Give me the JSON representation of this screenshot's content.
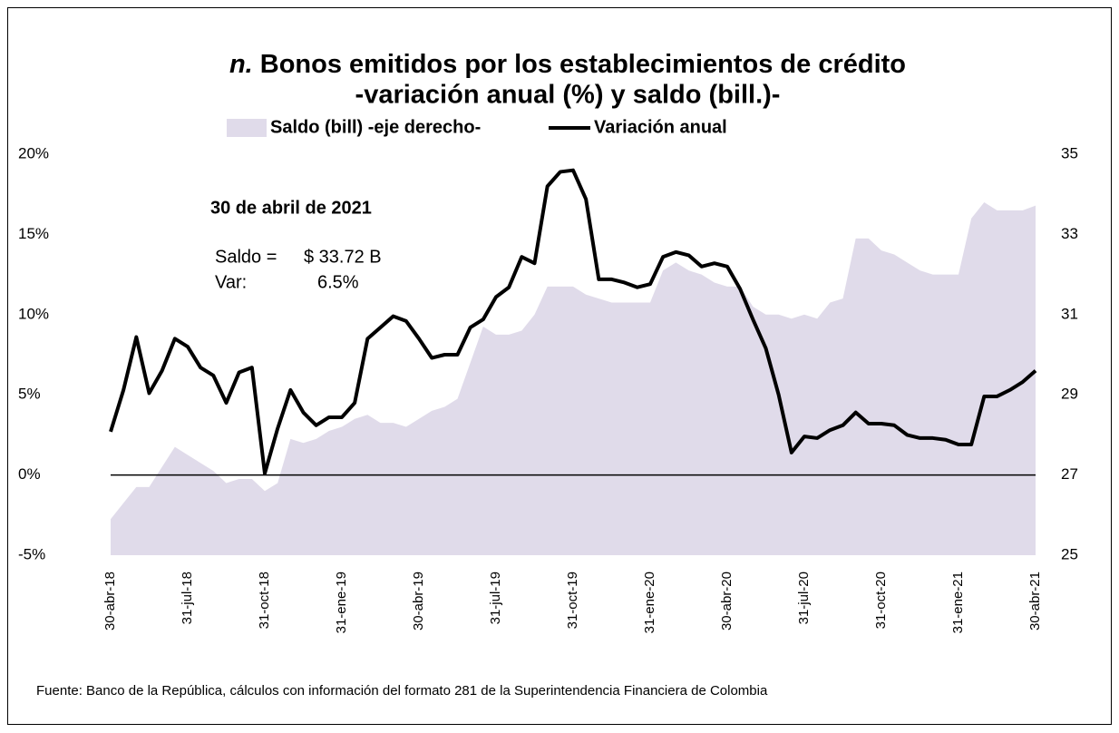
{
  "chart_data": {
    "type": "line",
    "title_marker": "n.",
    "title": [
      "Bonos emitidos por los establecimientos de crédito",
      "-variación anual (%) y saldo (bill.)-"
    ],
    "annotations": {
      "date": "30 de abril de 2021",
      "saldo_label": "Saldo =",
      "saldo_value": "$ 33.72 B",
      "var_label": "Var:",
      "var_value": "6.5%"
    },
    "source": "Fuente:  Banco de la República, cálculos con información del formato 281 de la Superintendencia Financiera de Colombia",
    "categories": [
      "30-abr-18",
      null,
      null,
      null,
      null,
      null,
      "31-jul-18",
      null,
      null,
      null,
      null,
      null,
      "31-oct-18",
      null,
      null,
      null,
      null,
      null,
      "31-ene-19",
      null,
      null,
      null,
      null,
      null,
      "30-abr-19",
      null,
      null,
      null,
      null,
      null,
      "31-jul-19",
      null,
      null,
      null,
      null,
      null,
      "31-oct-19",
      null,
      null,
      null,
      null,
      null,
      "31-ene-20",
      null,
      null,
      null,
      null,
      null,
      "30-abr-20",
      null,
      null,
      null,
      null,
      null,
      "31-jul-20",
      null,
      null,
      null,
      null,
      null,
      "31-oct-20",
      null,
      null,
      null,
      null,
      null,
      "31-ene-21",
      null,
      null,
      null,
      null,
      null,
      "30-abr-21"
    ],
    "series": [
      {
        "name": "Saldo (bill) -eje derecho-",
        "kind": "area",
        "axis": "y2",
        "color": "#e0dbea",
        "values": [
          25.9,
          26.3,
          26.7,
          26.7,
          27.2,
          27.7,
          27.5,
          27.3,
          27.1,
          26.8,
          26.9,
          26.9,
          26.6,
          26.8,
          27.9,
          27.8,
          27.9,
          28.1,
          28.2,
          28.4,
          28.5,
          28.3,
          28.3,
          28.2,
          28.4,
          28.6,
          28.7,
          28.9,
          29.8,
          30.7,
          30.5,
          30.5,
          30.6,
          31.0,
          31.7,
          31.7,
          31.7,
          31.5,
          31.4,
          31.3,
          31.3,
          31.3,
          31.3,
          32.1,
          32.3,
          32.1,
          32.0,
          31.8,
          31.7,
          31.7,
          31.2,
          31.0,
          31.0,
          30.9,
          31.0,
          30.9,
          31.3,
          31.4,
          32.9,
          32.9,
          32.6,
          32.5,
          32.3,
          32.1,
          32.0,
          32.0,
          32.0,
          33.4,
          33.8,
          33.6,
          33.6,
          33.6,
          33.72
        ]
      },
      {
        "name": "Variación anual",
        "kind": "line",
        "color": "#000000",
        "values": [
          2.7,
          5.3,
          8.6,
          5.1,
          6.5,
          8.5,
          8.0,
          6.7,
          6.2,
          4.5,
          6.4,
          6.7,
          0.1,
          2.9,
          5.3,
          3.9,
          3.1,
          3.6,
          3.6,
          4.5,
          8.5,
          9.2,
          9.9,
          9.6,
          8.5,
          7.3,
          7.5,
          7.5,
          9.2,
          9.7,
          11.1,
          11.7,
          13.6,
          13.2,
          18.0,
          18.9,
          19.0,
          17.2,
          12.2,
          12.2,
          12.0,
          11.7,
          11.9,
          13.6,
          13.9,
          13.7,
          13.0,
          13.2,
          13.0,
          11.6,
          9.7,
          7.9,
          5.0,
          1.4,
          2.4,
          2.3,
          2.8,
          3.1,
          3.9,
          3.2,
          3.2,
          3.1,
          2.5,
          2.3,
          2.3,
          2.2,
          1.9,
          1.9,
          4.9,
          4.9,
          5.3,
          5.8,
          6.5
        ]
      }
    ],
    "ylim": [
      -5,
      20
    ],
    "yticks": [
      {
        "value": -5,
        "label": "-5%"
      },
      {
        "value": 0,
        "label": "0%"
      },
      {
        "value": 5,
        "label": "5%"
      },
      {
        "value": 10,
        "label": "10%"
      },
      {
        "value": 15,
        "label": "15%"
      },
      {
        "value": 20,
        "label": "20%"
      }
    ],
    "y2lim": [
      25,
      35
    ],
    "y2ticks": [
      25,
      27,
      29,
      31,
      33,
      35
    ]
  }
}
